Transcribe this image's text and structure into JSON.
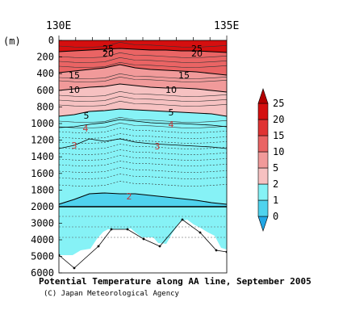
{
  "chart_data": {
    "type": "heatmap",
    "title": "Potential Temperature along AA line, September 2005",
    "credit": "(C) Japan Meteorological Agency",
    "ylabel": "(m)",
    "x_ticks": [
      "130E",
      "135E"
    ],
    "y_ticks_upper": [
      "0",
      "200",
      "400",
      "600",
      "800",
      "1000",
      "1200",
      "1400",
      "1600",
      "1800",
      "2000"
    ],
    "y_ticks_lower": [
      "3000",
      "4000",
      "5000",
      "6000"
    ],
    "ylim_upper": [
      0,
      2000
    ],
    "ylim_lower": [
      2000,
      6000
    ],
    "colorbar": {
      "levels": [
        "0",
        "1",
        "2",
        "5",
        "10",
        "15",
        "20",
        "25"
      ],
      "colors": [
        "#21a7e6",
        "#4fd3ee",
        "#86f2f6",
        "#f6c1c1",
        "#f19a9a",
        "#ea6464",
        "#e03333",
        "#d50f0f",
        "#b30000"
      ]
    },
    "isotherm_labels": [
      {
        "text": "25",
        "color": "#000000"
      },
      {
        "text": "20",
        "color": "#000000"
      },
      {
        "text": "25",
        "color": "#000000"
      },
      {
        "text": "20",
        "color": "#000000"
      },
      {
        "text": "15",
        "color": "#000000"
      },
      {
        "text": "15",
        "color": "#000000"
      },
      {
        "text": "10",
        "color": "#000000"
      },
      {
        "text": "10",
        "color": "#000000"
      },
      {
        "text": "5",
        "color": "#000000"
      },
      {
        "text": "5",
        "color": "#000000"
      },
      {
        "text": "4",
        "color": "#c03a3a"
      },
      {
        "text": "4",
        "color": "#c03a3a"
      },
      {
        "text": "3",
        "color": "#c03a3a"
      },
      {
        "text": "3",
        "color": "#c03a3a"
      },
      {
        "text": "2",
        "color": "#c03a3a"
      }
    ]
  }
}
